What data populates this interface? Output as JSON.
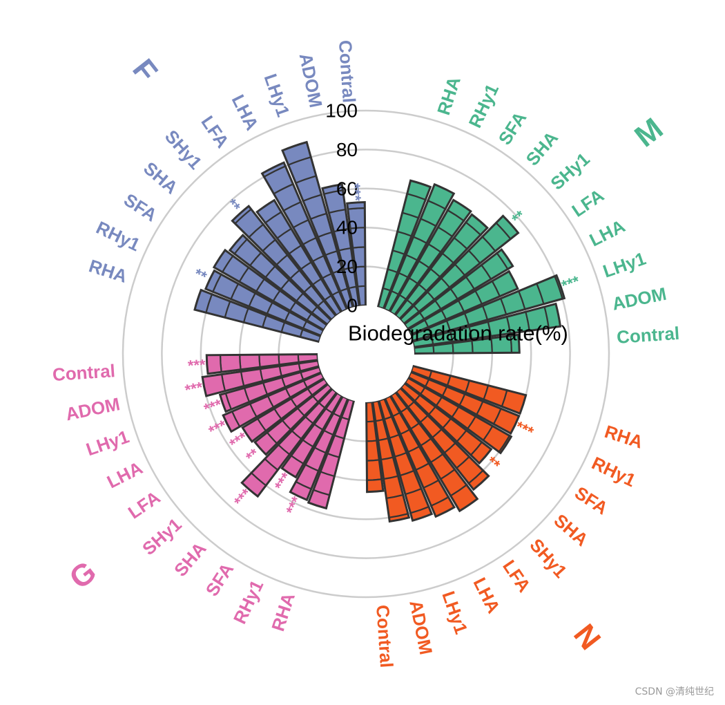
{
  "chart_data": {
    "type": "radial-bar",
    "ylabel": "Biodegradation rate(%)",
    "rlim": [
      0,
      100
    ],
    "rticks": [
      0,
      20,
      40,
      60,
      80,
      100
    ],
    "rtick_labels": [
      "0",
      "20",
      "40",
      "60",
      "80",
      "100"
    ],
    "gridlines": true,
    "segment_step": 10,
    "edge_color": "#333333",
    "categories": [
      "Contral",
      "ADOM",
      "LHy1",
      "LHA",
      "LFA",
      "SHy1",
      "SHA",
      "SFA",
      "RHy1",
      "RHA"
    ],
    "groups": [
      {
        "name": "M",
        "color": "#4bb68e",
        "values": [
          54,
          76,
          81,
          60,
          63,
          75,
          65,
          66,
          69,
          67
        ],
        "significance": [
          "",
          "",
          "***",
          "",
          "",
          "**",
          "",
          "",
          "",
          ""
        ]
      },
      {
        "name": "N",
        "color": "#f15a22",
        "values": [
          46,
          62,
          64,
          66,
          69,
          64,
          56,
          61,
          60,
          60
        ],
        "significance": [
          "",
          "",
          "",
          "",
          "",
          "",
          "**",
          "",
          "***",
          ""
        ]
      },
      {
        "name": "G",
        "color": "#e06aad",
        "values": [
          57,
          60,
          53,
          55,
          49,
          48,
          67,
          48,
          56,
          57
        ],
        "significance": [
          "***",
          "***",
          "***",
          "***",
          "***",
          "**",
          "***",
          "***",
          "***",
          ""
        ]
      },
      {
        "name": "F",
        "color": "#7889bf",
        "values": [
          53,
          63,
          88,
          82,
          67,
          72,
          63,
          65,
          64,
          66
        ],
        "significance": [
          "***",
          "",
          "",
          "",
          "",
          "**",
          "",
          "",
          "**",
          ""
        ]
      }
    ]
  },
  "watermark": "CSDN @清纯世纪"
}
